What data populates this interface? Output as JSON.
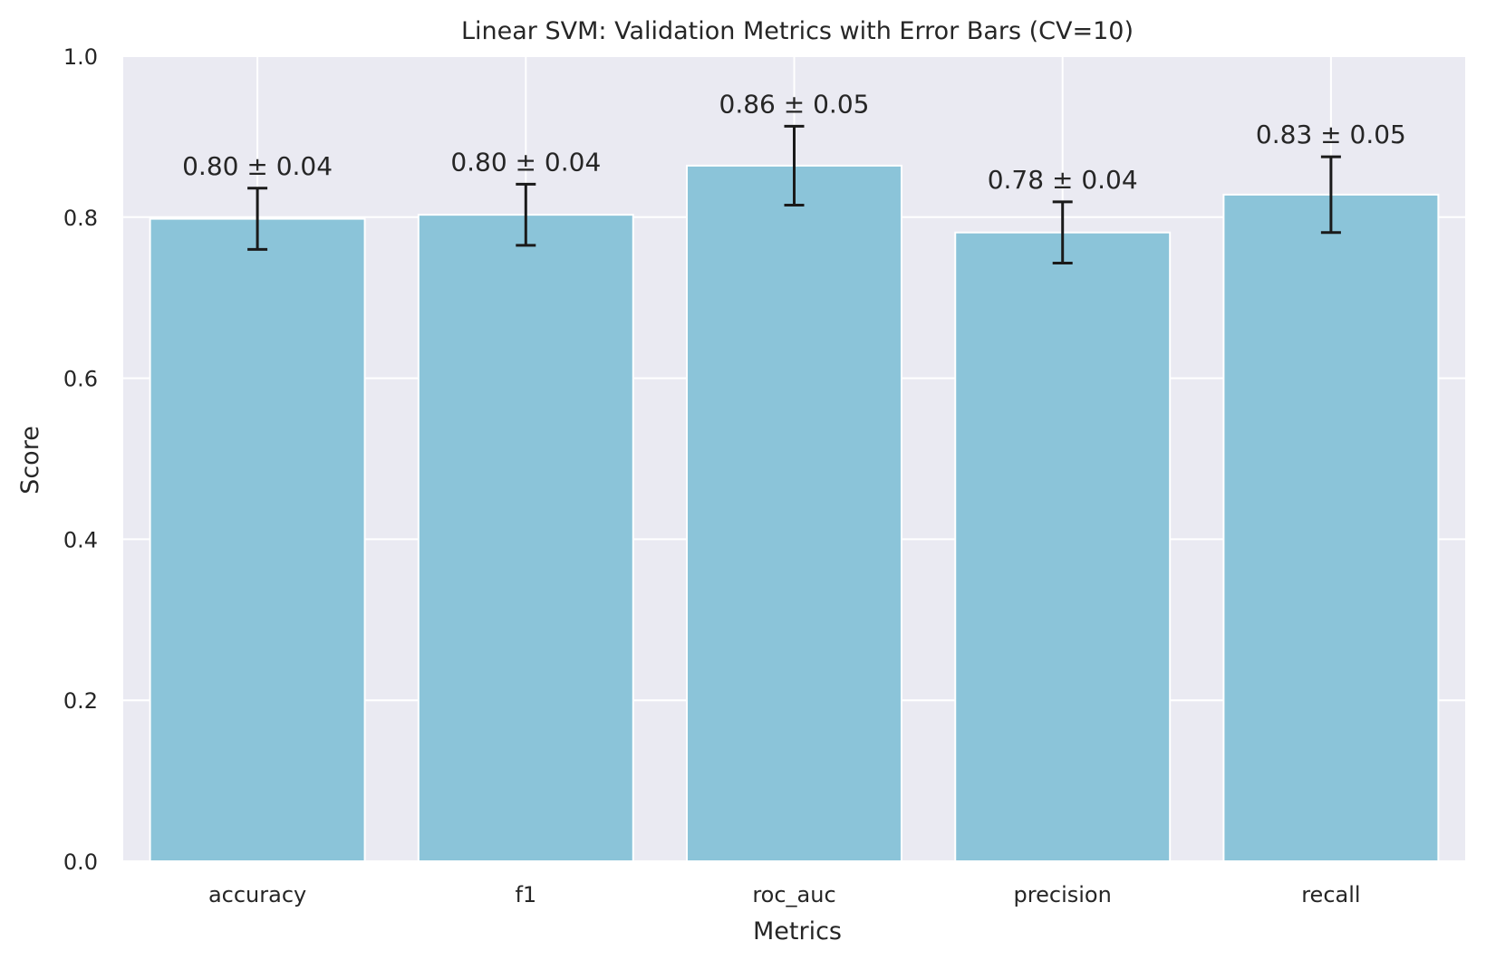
{
  "chart_data": {
    "type": "bar",
    "title": "Linear SVM: Validation Metrics with Error Bars (CV=10)",
    "xlabel": "Metrics",
    "ylabel": "Score",
    "ylim": [
      0,
      1.0
    ],
    "yticks": [
      0.0,
      0.2,
      0.4,
      0.6,
      0.8,
      1.0
    ],
    "ytick_labels": [
      "0.0",
      "0.2",
      "0.4",
      "0.6",
      "0.8",
      "1.0"
    ],
    "categories": [
      "accuracy",
      "f1",
      "roc_auc",
      "precision",
      "recall"
    ],
    "values": [
      0.798,
      0.803,
      0.864,
      0.781,
      0.828
    ],
    "errors": [
      0.038,
      0.038,
      0.049,
      0.038,
      0.047
    ],
    "data_labels": [
      "0.80 ± 0.04",
      "0.80 ± 0.04",
      "0.86 ± 0.05",
      "0.78 ± 0.04",
      "0.83 ± 0.05"
    ],
    "grid": true,
    "colors": {
      "bar": "#8bc4d9",
      "plot_background": "#eaeaf2",
      "grid": "#ffffff",
      "error_bar": "#1a1a1a"
    }
  }
}
